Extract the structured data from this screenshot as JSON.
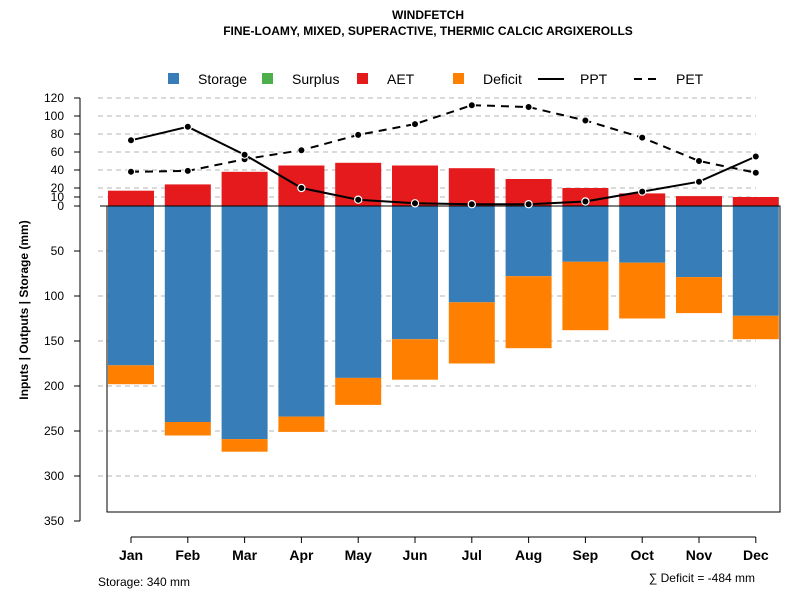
{
  "chart_data": {
    "type": "bar",
    "title": "WINDFETCH",
    "subtitle": "FINE-LOAMY, MIXED, SUPERACTIVE, THERMIC CALCIC ARGIXEROLLS",
    "ylabel": "Inputs | Outputs | Storage     (mm)",
    "categories": [
      "Jan",
      "Feb",
      "Mar",
      "Apr",
      "May",
      "Jun",
      "Jul",
      "Aug",
      "Sep",
      "Oct",
      "Nov",
      "Dec"
    ],
    "upper_ticks": [
      "0",
      "10",
      "20",
      "40",
      "60",
      "80",
      "100",
      "120"
    ],
    "upper_tick_values": [
      0,
      10,
      20,
      40,
      60,
      80,
      100,
      120
    ],
    "upper_ylim": [
      0,
      120
    ],
    "lower_ticks": [
      "50",
      "100",
      "150",
      "200",
      "250",
      "300",
      "350"
    ],
    "lower_tick_values": [
      50,
      100,
      150,
      200,
      250,
      300,
      350
    ],
    "lower_ylim": [
      0,
      350
    ],
    "storage_capacity": 340,
    "series": [
      {
        "name": "AET",
        "values": [
          17,
          24,
          38,
          45,
          48,
          45,
          42,
          30,
          20,
          14,
          11,
          10
        ]
      },
      {
        "name": "Storage",
        "values": [
          177,
          240,
          259,
          234,
          191,
          148,
          107,
          78,
          62,
          63,
          79,
          122
        ]
      },
      {
        "name": "Deficit",
        "values": [
          21,
          15,
          14,
          17,
          30,
          45,
          68,
          80,
          76,
          62,
          40,
          26
        ]
      },
      {
        "name": "Surplus",
        "values": [
          0,
          0,
          0,
          0,
          0,
          0,
          0,
          0,
          0,
          0,
          0,
          0
        ]
      },
      {
        "name": "PPT",
        "values": [
          73,
          88,
          57,
          20,
          7,
          3,
          2,
          2,
          5,
          16,
          27,
          55
        ]
      },
      {
        "name": "PET",
        "values": [
          38,
          39,
          52,
          62,
          79,
          91,
          112,
          110,
          95,
          76,
          50,
          37
        ]
      }
    ],
    "legend": [
      {
        "label": "Storage",
        "kind": "box",
        "color": "#377EB8"
      },
      {
        "label": "Surplus",
        "kind": "box",
        "color": "#4DAF4A"
      },
      {
        "label": "AET",
        "kind": "box",
        "color": "#E41A1C"
      },
      {
        "label": "Deficit",
        "kind": "box",
        "color": "#FF7F00"
      },
      {
        "label": "PPT",
        "kind": "solid-line",
        "color": "#000000"
      },
      {
        "label": "PET",
        "kind": "dashed-line",
        "color": "#000000"
      }
    ],
    "legend_position": "top",
    "grid": true
  },
  "footer": {
    "storage_label": "Storage: 340 mm",
    "deficit_label": "∑ Deficit = -484 mm"
  }
}
